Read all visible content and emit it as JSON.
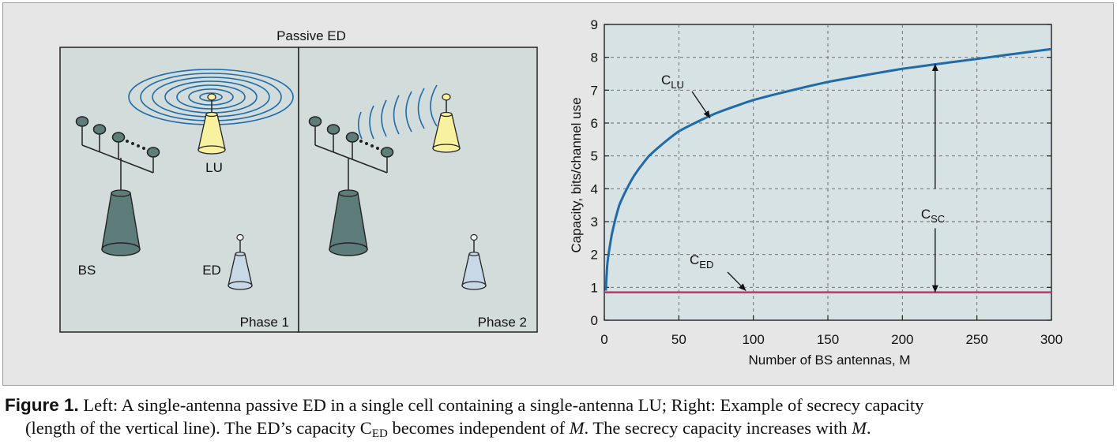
{
  "diagram": {
    "title": "Passive ED",
    "labels": {
      "bs": "BS",
      "lu": "LU",
      "ed": "ED"
    },
    "phases": [
      "Phase 1",
      "Phase 2"
    ]
  },
  "caption": {
    "label": "Figure 1.",
    "line1": "Left: A single-antenna passive ED in a single cell containing a single-antenna LU; Right: Example of secrecy capacity",
    "line2_a": "(length of the vertical line). The ED’s capacity C",
    "line2_sub": "ED",
    "line2_b": " becomes independent of ",
    "line2_m1": "M",
    "line2_c": ". The secrecy capacity increases with ",
    "line2_m2": "M",
    "line2_d": "."
  },
  "colors": {
    "panel_bg": "#e6e6e6",
    "diagram_bg": "#d2dcdb",
    "plot_bg": "#d7e2e5",
    "lu_curve": "#1f6aa8",
    "ed_line": "#c8326a",
    "bs_fill": "#5e7c7a",
    "lu_fill": "#f8f2a0",
    "ed_fill": "#c9d8e6"
  },
  "chart_data": {
    "type": "line",
    "xlabel": "Number of BS antennas, M",
    "ylabel": "Capacity, bits/channel use",
    "xlim": [
      0,
      300
    ],
    "ylim": [
      0,
      9
    ],
    "xticks": [
      0,
      50,
      100,
      150,
      200,
      250,
      300
    ],
    "yticks": [
      0,
      1,
      2,
      3,
      4,
      5,
      6,
      7,
      8,
      9
    ],
    "grid": true,
    "series": [
      {
        "name": "C_LU",
        "label_main": "C",
        "label_sub": "LU",
        "color": "#1f6aa8",
        "x": [
          1,
          2,
          5,
          10,
          20,
          30,
          50,
          75,
          100,
          150,
          200,
          250,
          300
        ],
        "y": [
          0.9,
          1.7,
          2.6,
          3.5,
          4.4,
          5.0,
          5.75,
          6.3,
          6.7,
          7.25,
          7.65,
          7.95,
          8.25
        ]
      },
      {
        "name": "C_ED",
        "label_main": "C",
        "label_sub": "ED",
        "color": "#c8326a",
        "x": [
          0,
          300
        ],
        "y": [
          0.85,
          0.85
        ]
      }
    ],
    "annotations": [
      {
        "label_main": "C",
        "label_sub": "SC",
        "type": "vertical-arrow",
        "x": 222,
        "y_from": 0.85,
        "y_to": 7.8
      }
    ]
  }
}
